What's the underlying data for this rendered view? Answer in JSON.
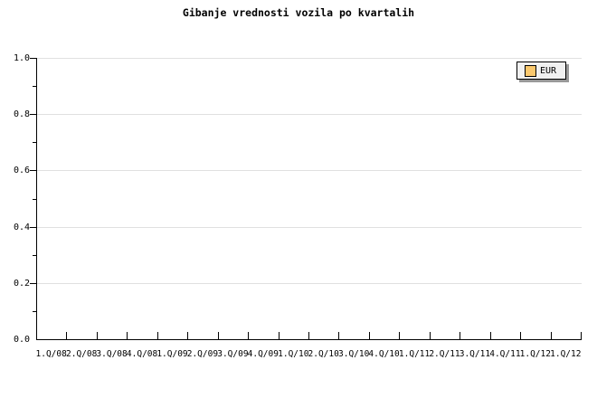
{
  "title": "Gibanje vrednosti vozila po kvartalih",
  "legend": {
    "label": "EUR",
    "swatch_color": "#fac86e"
  },
  "colors": {
    "background": "#ffffff",
    "axis": "#000000",
    "grid": "#e0e0e0",
    "text": "#000000",
    "legend_background": "#f0f0f0",
    "legend_border": "#000000",
    "legend_shadow": "#999999"
  },
  "chart_data": {
    "type": "line",
    "title": "Gibanje vrednosti vozila po kvartalih",
    "categories": [
      "1.Q/08",
      "2.Q/08",
      "3.Q/08",
      "4.Q/08",
      "1.Q/09",
      "2.Q/09",
      "3.Q/09",
      "4.Q/09",
      "1.Q/10",
      "2.Q/10",
      "3.Q/10",
      "4.Q/10",
      "1.Q/11",
      "2.Q/11",
      "3.Q/11",
      "4.Q/11",
      "1.Q/12",
      "1.Q/12"
    ],
    "series": [
      {
        "name": "EUR",
        "color": "#fac86e",
        "values": []
      }
    ],
    "xlabel": "",
    "ylabel": "",
    "ylim": [
      0.0,
      1.0
    ],
    "yticks": [
      0.0,
      0.2,
      0.4,
      0.6,
      0.8,
      1.0
    ],
    "ytick_labels": [
      "0.0",
      "0.2",
      "0.4",
      "0.6",
      "0.8",
      "1.0"
    ],
    "minor_yticks": [
      0.1,
      0.3,
      0.5,
      0.7,
      0.9
    ],
    "grid": "horizontal",
    "legend_position": "top-right",
    "plot_empty": true
  }
}
